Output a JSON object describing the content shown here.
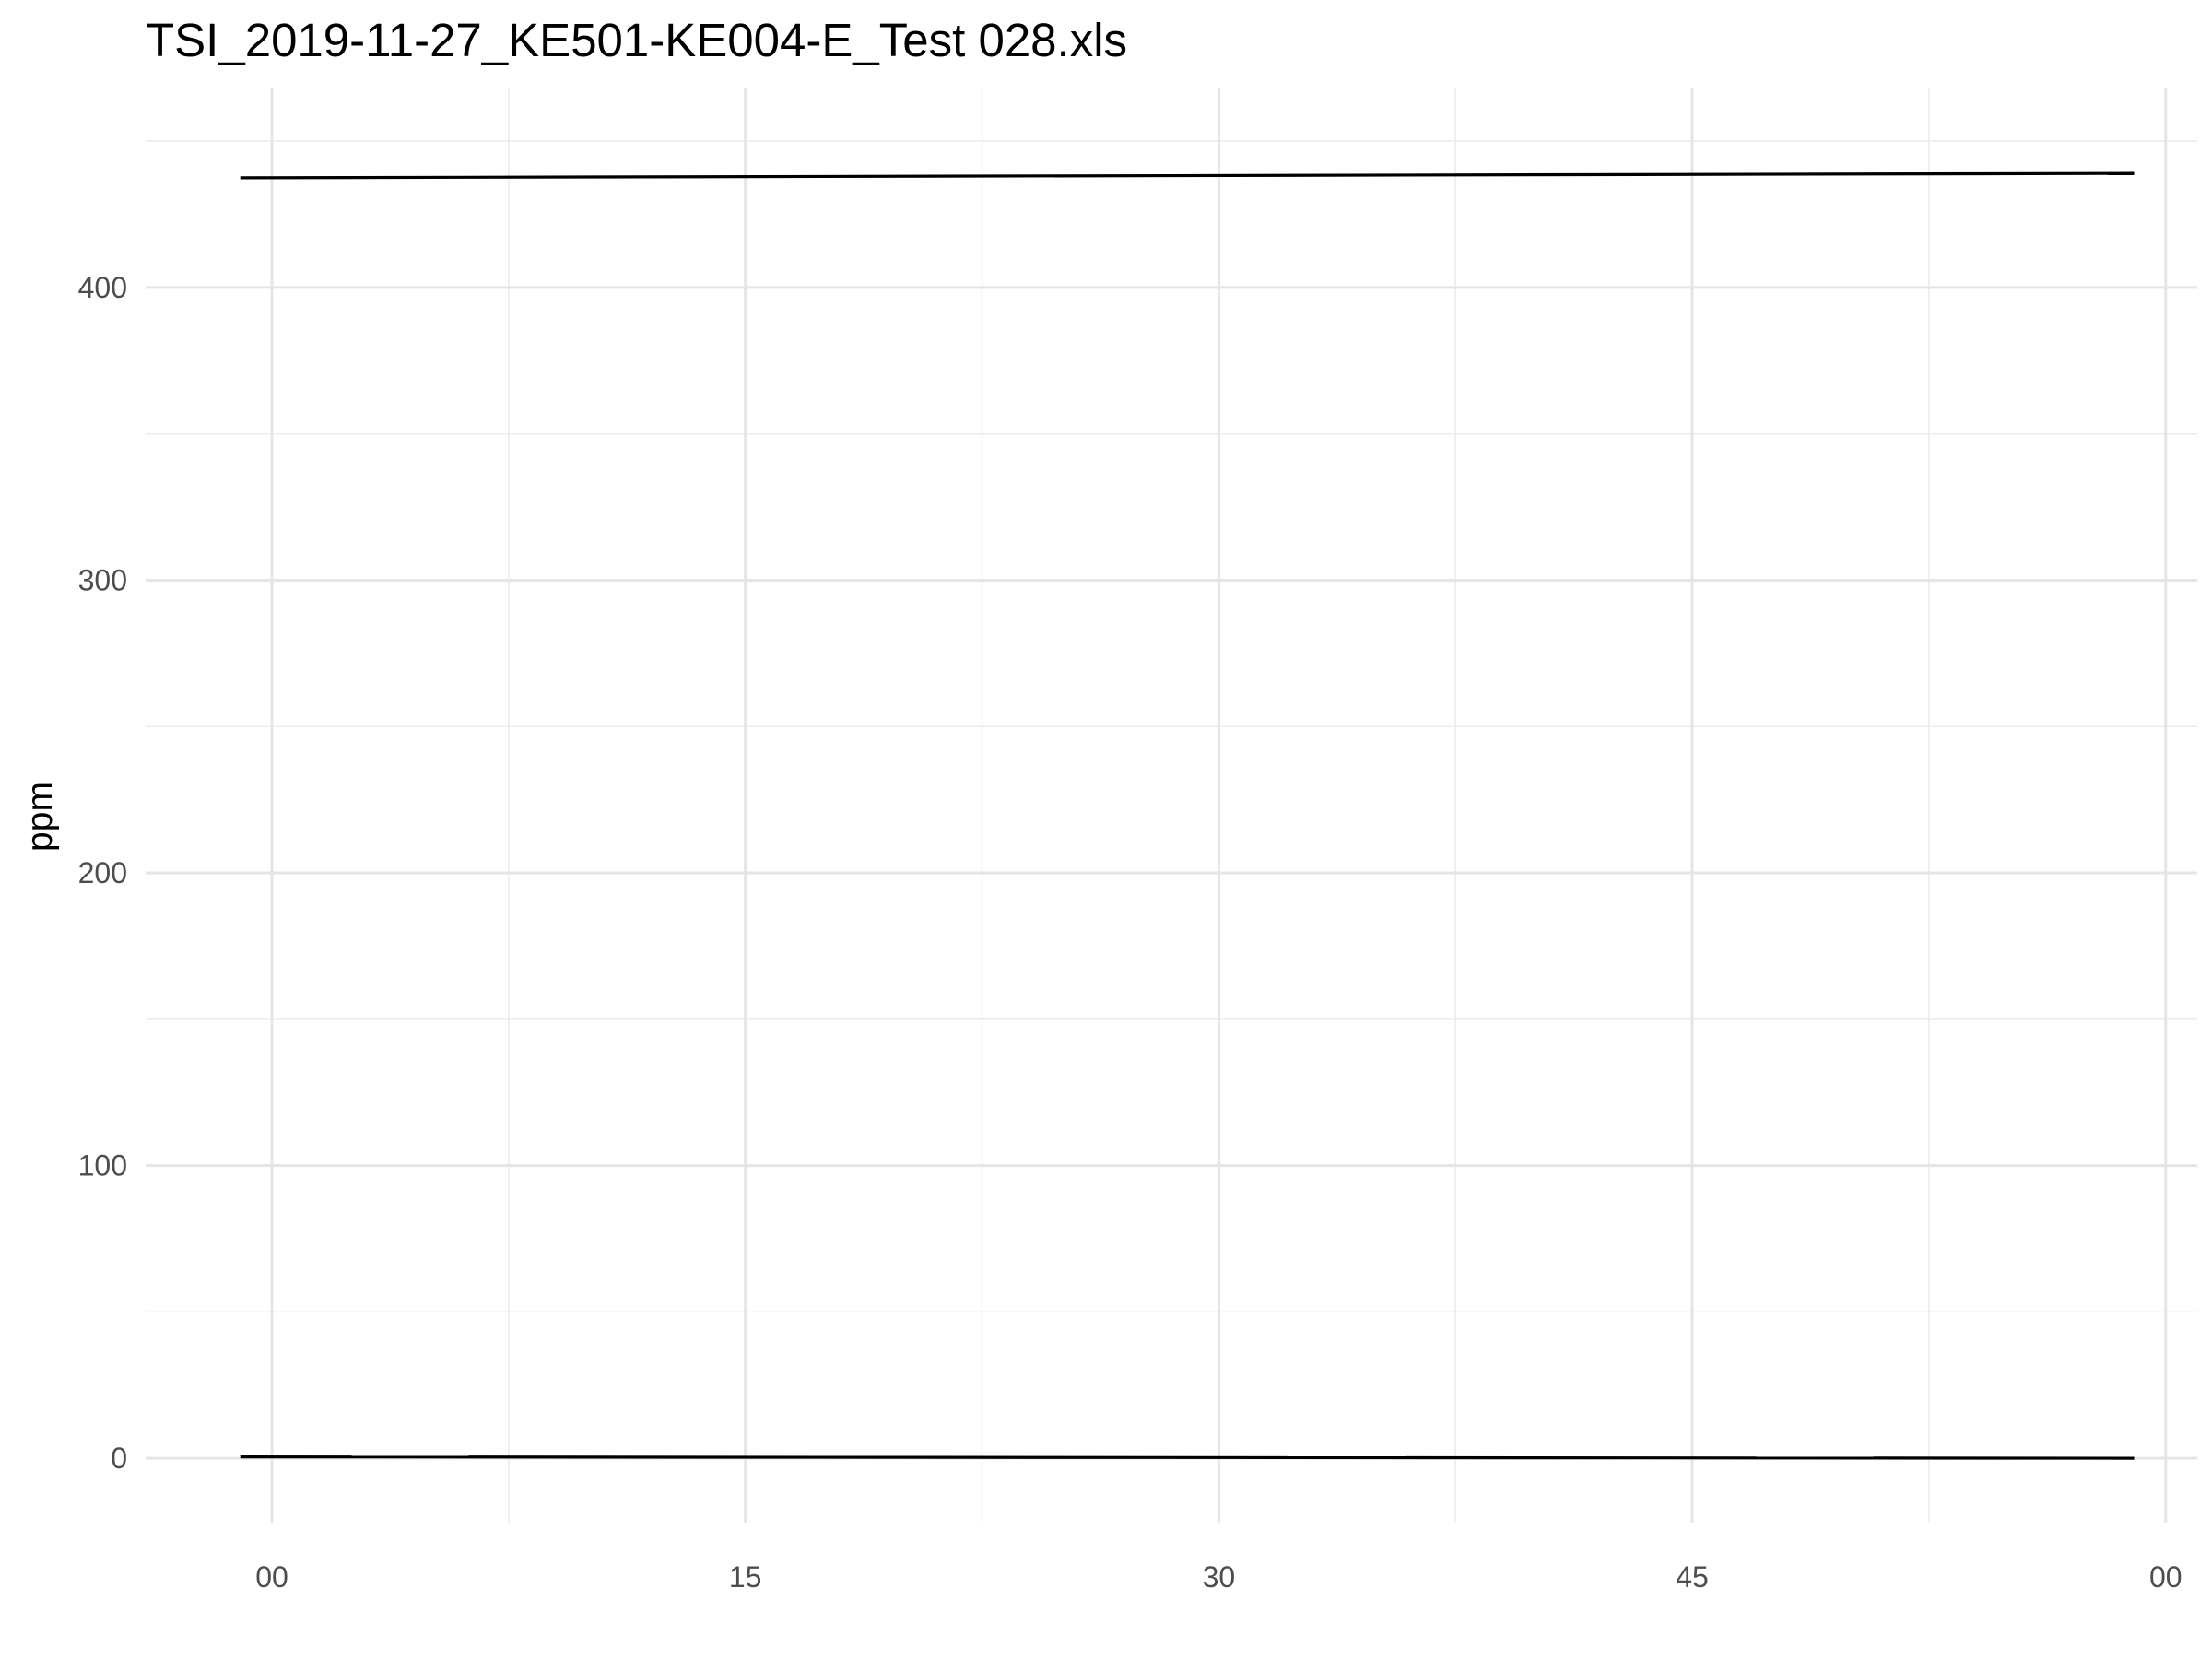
{
  "chart_data": {
    "type": "line",
    "title": "TSI_2019-11-27_KE501-KE004-E_Test 028.xls",
    "xlabel": "",
    "ylabel": "ppm",
    "x_tick_labels": [
      "00",
      "15",
      "30",
      "45",
      "00"
    ],
    "x_tick_minutes": [
      0,
      15,
      30,
      45,
      60
    ],
    "xlim_minutes": [
      -4,
      61
    ],
    "y_ticks": [
      0,
      100,
      200,
      300,
      400
    ],
    "ylim": [
      -22,
      468
    ],
    "grid": true,
    "legend": "none",
    "series": [
      {
        "color": "#000000",
        "x_minutes": [
          -1,
          59
        ],
        "values": [
          437.5,
          439
        ]
      },
      {
        "color": "#000000",
        "x_minutes": [
          -1,
          59
        ],
        "values": [
          0.5,
          0
        ]
      }
    ]
  }
}
